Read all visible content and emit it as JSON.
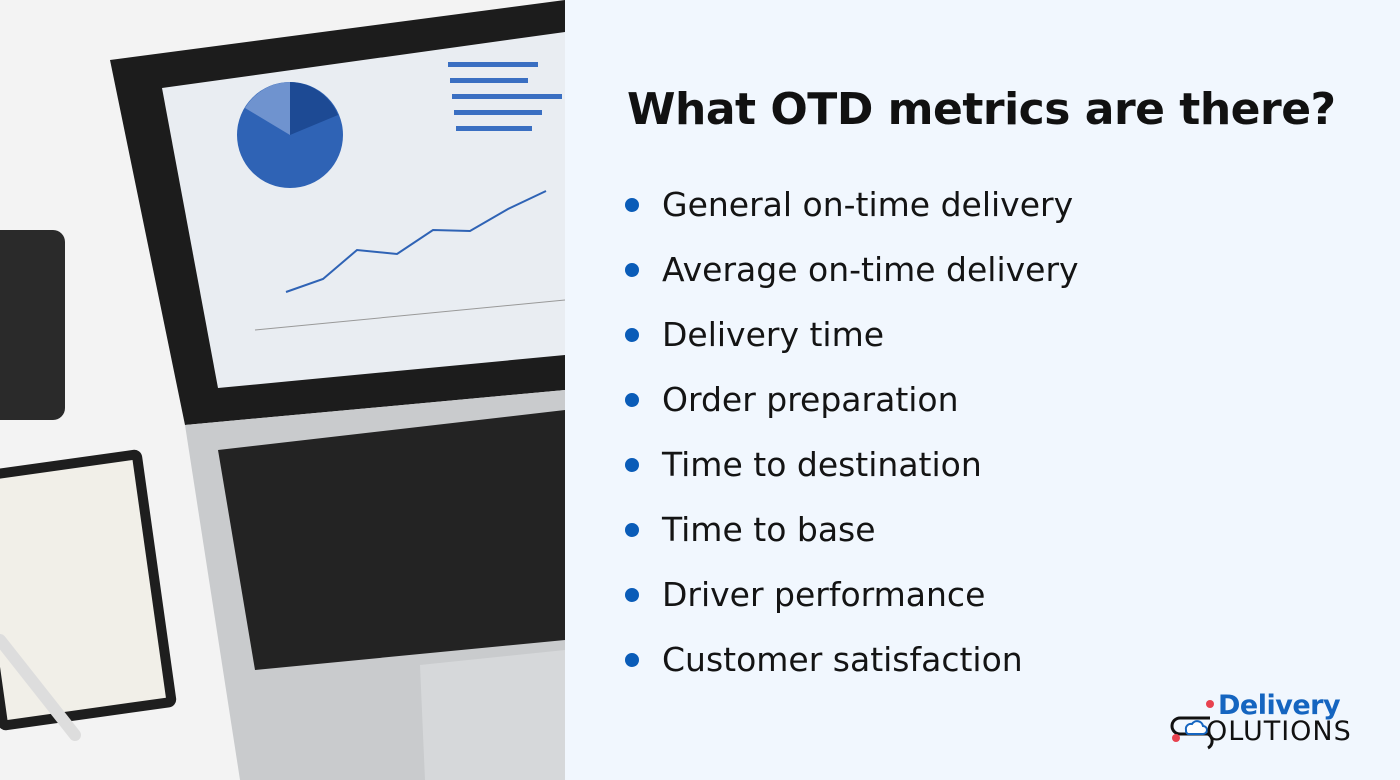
{
  "heading": "What OTD metrics are there?",
  "metrics": [
    "General on-time delivery",
    "Average on-time delivery",
    "Delivery time",
    "Order preparation",
    "Time to destination",
    "Time to base",
    "Driver performance",
    "Customer satisfaction"
  ],
  "logo": {
    "line1": "Delivery",
    "line2": "OLUTIONS",
    "brand_color": "#1565c0",
    "pin_color": "#e8424f"
  },
  "colors": {
    "bullet": "#0a5cb8",
    "panel_bg": "#f1f7fe"
  }
}
